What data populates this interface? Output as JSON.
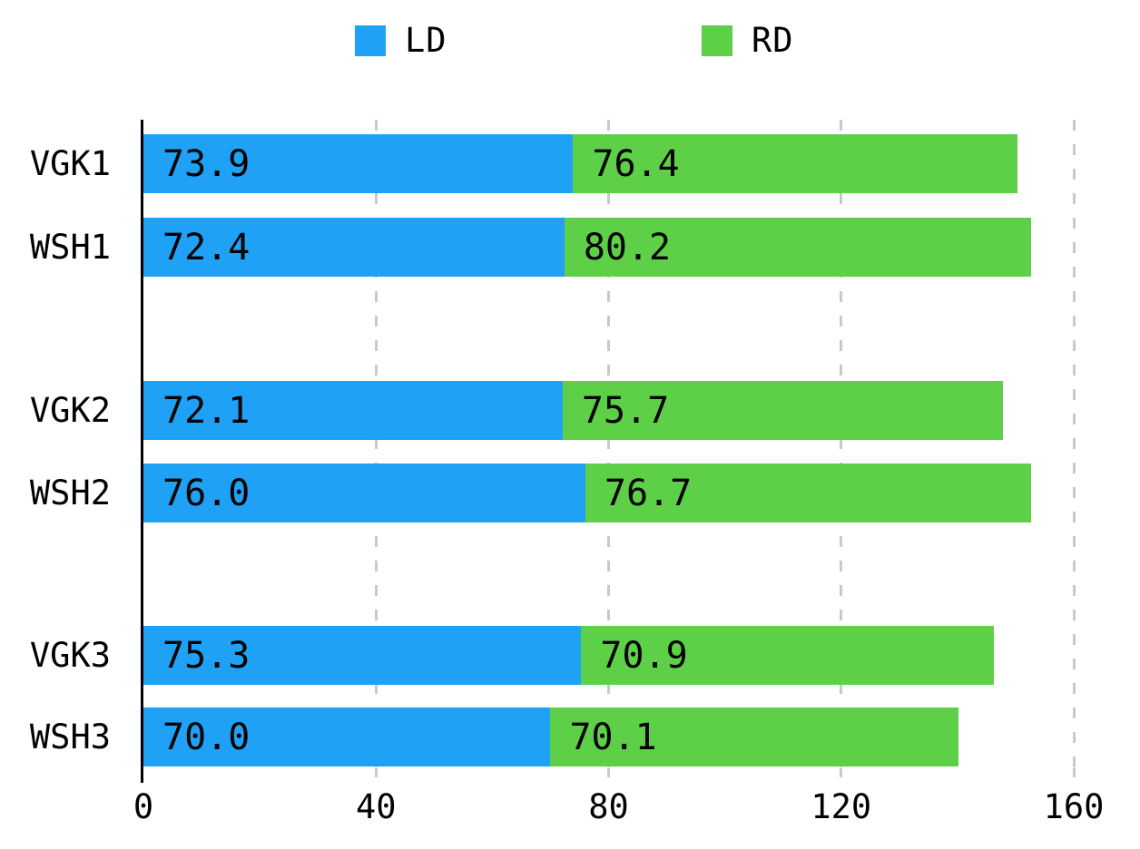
{
  "legend": {
    "items": [
      {
        "label": "LD",
        "color": "#1FA1F5"
      },
      {
        "label": "RD",
        "color": "#5DD047"
      }
    ]
  },
  "chart_data": {
    "type": "bar",
    "orientation": "horizontal",
    "stacked": true,
    "title": "",
    "categories": [
      "VGK1",
      "WSH1",
      "VGK2",
      "WSH2",
      "VGK3",
      "WSH3"
    ],
    "groups": [
      [
        "VGK1",
        "WSH1"
      ],
      [
        "VGK2",
        "WSH2"
      ],
      [
        "VGK3",
        "WSH3"
      ]
    ],
    "series": [
      {
        "name": "LD",
        "color": "#1FA1F5",
        "values": [
          73.9,
          72.4,
          72.1,
          76.0,
          75.3,
          70.0
        ]
      },
      {
        "name": "RD",
        "color": "#5DD047",
        "values": [
          76.4,
          80.2,
          75.7,
          76.7,
          70.9,
          70.1
        ]
      }
    ],
    "x_ticks": [
      0,
      40,
      80,
      120,
      160
    ],
    "xlim": [
      0,
      160
    ],
    "value_label_decimals": 1,
    "value_labels": "inside-start",
    "grid": {
      "style": "dashed",
      "axis": "vertical",
      "color": "#C9C9C9"
    },
    "legend_position": "top",
    "axis_color": "#000000",
    "text_color": "#000000",
    "background_color": "#FFFFFF"
  }
}
